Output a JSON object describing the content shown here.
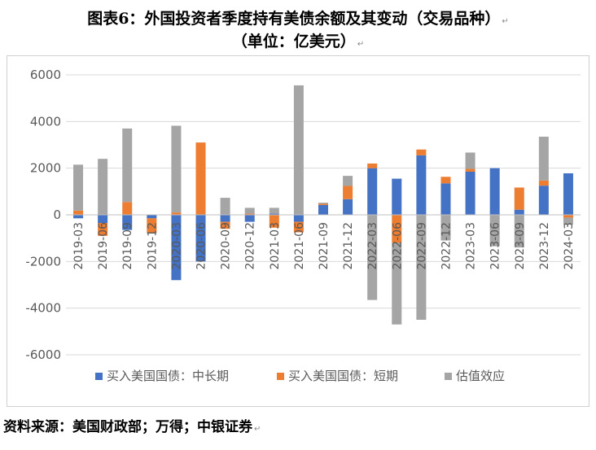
{
  "page": {
    "title_line1": "图表6：外国投资者季度持有美债余额及其变动（交易品种）",
    "title_line2": "（单位：亿美元）",
    "source": "资料来源：美国财政部；万得；中银证券"
  },
  "chart_data": {
    "type": "bar",
    "stacked": true,
    "title": "图表6：外国投资者季度持有美债余额及其变动（交易品种）",
    "subtitle": "（单位：亿美元）",
    "categories": [
      "2019-03",
      "2019-06",
      "2019-09",
      "2019-12",
      "2020-03",
      "2020-06",
      "2020-09",
      "2020-12",
      "2021-03",
      "2021-06",
      "2021-09",
      "2021-12",
      "2022-03",
      "2022-06",
      "2022-09",
      "2022-12",
      "2023-03",
      "2023-06",
      "2023-09",
      "2023-12",
      "2024-03"
    ],
    "series": [
      {
        "name": "买入美国国债：中长期",
        "color": "#4472C4",
        "values": [
          -150,
          -350,
          -650,
          -150,
          -2800,
          -2000,
          -300,
          -300,
          50,
          -300,
          420,
          670,
          2000,
          1550,
          2550,
          1350,
          1850,
          2000,
          220,
          1250,
          1780
        ]
      },
      {
        "name": "买入美国国债：短期",
        "color": "#ED7D31",
        "values": [
          180,
          -550,
          550,
          -600,
          100,
          3100,
          -300,
          50,
          -550,
          -450,
          50,
          570,
          200,
          -1200,
          250,
          280,
          120,
          0,
          950,
          220,
          -120
        ]
      },
      {
        "name": "估值效应",
        "color": "#A5A5A5",
        "values": [
          1970,
          2400,
          3150,
          -50,
          3720,
          0,
          730,
          250,
          250,
          5550,
          50,
          430,
          -3650,
          -3500,
          -4500,
          -1100,
          700,
          -1350,
          -1400,
          1880,
          -300
        ]
      }
    ],
    "ylim": [
      -6000,
      6000
    ],
    "yticks": [
      -6000,
      -4000,
      -2000,
      0,
      2000,
      4000,
      6000
    ],
    "grid": true,
    "legend_position": "bottom"
  }
}
